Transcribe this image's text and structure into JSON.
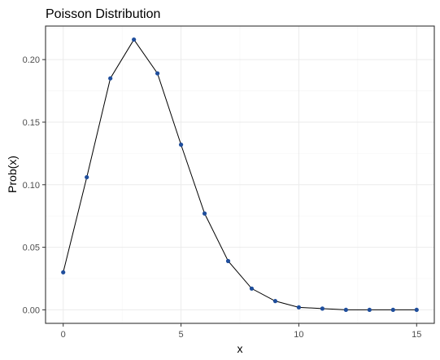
{
  "chart_data": {
    "type": "line",
    "title": "Poisson Distribution",
    "xlabel": "x",
    "ylabel": "Prob(x)",
    "x": [
      0,
      1,
      2,
      3,
      4,
      5,
      6,
      7,
      8,
      9,
      10,
      11,
      12,
      13,
      14,
      15
    ],
    "series": [
      {
        "values": [
          0.03,
          0.106,
          0.185,
          0.216,
          0.189,
          0.132,
          0.077,
          0.039,
          0.017,
          0.007,
          0.002,
          0.001,
          0.0,
          0.0,
          0.0,
          0.0
        ],
        "color": "#1f4e9c",
        "markers": true
      }
    ],
    "xlim": [
      -0.75,
      15.75
    ],
    "ylim": [
      -0.0108,
      0.2268
    ],
    "x_ticks": [
      0,
      5,
      10,
      15
    ],
    "x_tick_labels": [
      "0",
      "5",
      "10",
      "15"
    ],
    "y_ticks": [
      0,
      0.05,
      0.1,
      0.15,
      0.2
    ],
    "y_tick_labels": [
      "0.00",
      "0.05",
      "0.10",
      "0.15",
      "0.20"
    ],
    "grid": true,
    "legend": "none",
    "theme": "bw"
  }
}
